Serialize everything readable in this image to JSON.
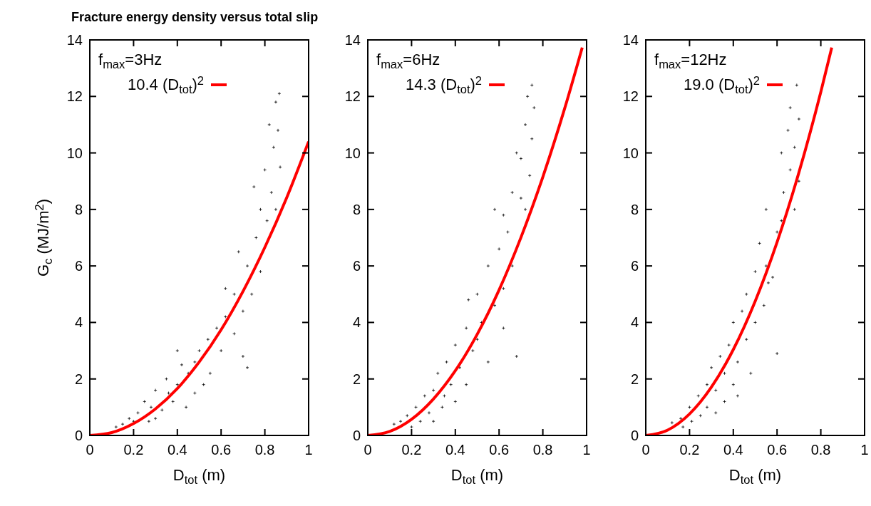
{
  "chart_data": [
    {
      "type": "scatter",
      "title": "Fracture energy density versus total slip",
      "xlabel": "D$_{tot}$ (m)",
      "ylabel": "G$_{c}$ (MJ/m$^{2}$)",
      "annotations": [
        "f$_{max}$=3Hz"
      ],
      "xlim": [
        0,
        1
      ],
      "ylim": [
        0,
        14
      ],
      "xticks": [
        0,
        0.2,
        0.4,
        0.6,
        0.8,
        1
      ],
      "yticks": [
        0,
        2,
        4,
        6,
        8,
        10,
        12,
        14
      ],
      "legend": "top left",
      "series": [
        {
          "color": "#000000",
          "marker": "cross",
          "x": [
            0.866,
            0.85,
            0.82,
            0.86,
            0.84,
            0.8,
            0.87,
            0.83,
            0.78,
            0.85,
            0.76,
            0.81,
            0.72,
            0.78,
            0.74,
            0.66,
            0.7,
            0.62,
            0.66,
            0.58,
            0.54,
            0.6,
            0.72,
            0.7,
            0.5,
            0.48,
            0.55,
            0.45,
            0.42,
            0.4,
            0.48,
            0.35,
            0.38,
            0.3,
            0.33,
            0.28,
            0.25,
            0.22,
            0.27,
            0.2,
            0.18,
            0.15,
            0.12,
            0.36,
            0.44,
            0.52,
            0.4,
            0.3,
            0.62,
            0.68,
            0.75
          ],
          "values": [
            12.1,
            11.8,
            11.0,
            10.8,
            10.2,
            9.4,
            9.5,
            8.6,
            8.0,
            8.0,
            7.0,
            7.6,
            6.0,
            5.8,
            5.0,
            5.0,
            4.4,
            4.2,
            3.6,
            3.8,
            3.4,
            3.0,
            2.4,
            2.8,
            3.0,
            2.6,
            2.2,
            2.2,
            2.5,
            1.8,
            1.5,
            2.0,
            1.2,
            1.6,
            0.9,
            1.0,
            1.2,
            0.8,
            0.5,
            0.5,
            0.6,
            0.4,
            0.3,
            1.5,
            1.0,
            1.8,
            3.0,
            0.6,
            5.2,
            6.5,
            8.8
          ]
        },
        {
          "type": "line",
          "name": "10.4 (D$_{tot}$)$^{2}$",
          "color": "#ff0000",
          "x": [
            0,
            0.1,
            0.2,
            0.3,
            0.4,
            0.5,
            0.6,
            0.7,
            0.8,
            0.9,
            1.0
          ],
          "values": [
            0,
            0.1,
            0.42,
            0.94,
            1.66,
            2.6,
            3.74,
            5.1,
            6.66,
            8.42,
            10.4
          ]
        }
      ]
    },
    {
      "type": "scatter",
      "xlabel": "D$_{tot}$ (m)",
      "annotations": [
        "f$_{max}$=6Hz"
      ],
      "xlim": [
        0,
        1
      ],
      "ylim": [
        0,
        14
      ],
      "xticks": [
        0,
        0.2,
        0.4,
        0.6,
        0.8,
        1
      ],
      "yticks": [
        0,
        2,
        4,
        6,
        8,
        10,
        12,
        14
      ],
      "legend": "top left",
      "series": [
        {
          "color": "#000000",
          "marker": "cross",
          "x": [
            0.75,
            0.73,
            0.76,
            0.72,
            0.75,
            0.68,
            0.7,
            0.74,
            0.66,
            0.72,
            0.62,
            0.7,
            0.6,
            0.66,
            0.55,
            0.62,
            0.5,
            0.58,
            0.46,
            0.52,
            0.62,
            0.45,
            0.48,
            0.55,
            0.68,
            0.4,
            0.42,
            0.36,
            0.45,
            0.38,
            0.32,
            0.4,
            0.3,
            0.34,
            0.26,
            0.28,
            0.22,
            0.24,
            0.18,
            0.2,
            0.15,
            0.12,
            0.58,
            0.64,
            0.5,
            0.35,
            0.3
          ],
          "values": [
            12.4,
            12.0,
            11.6,
            11.0,
            10.5,
            10.0,
            9.8,
            9.2,
            8.6,
            8.0,
            7.8,
            8.4,
            6.6,
            6.0,
            6.0,
            5.2,
            5.0,
            4.6,
            4.8,
            4.0,
            3.8,
            3.8,
            3.0,
            2.6,
            2.8,
            3.2,
            2.4,
            2.6,
            1.8,
            1.8,
            2.2,
            1.2,
            1.6,
            1.0,
            1.4,
            0.8,
            1.0,
            0.5,
            0.7,
            0.3,
            0.5,
            0.4,
            8.0,
            7.2,
            3.4,
            1.4,
            0.5
          ]
        },
        {
          "type": "line",
          "name": "14.3 (D$_{tot}$)$^{2}$",
          "color": "#ff0000",
          "x": [
            0,
            0.1,
            0.2,
            0.3,
            0.4,
            0.5,
            0.6,
            0.7,
            0.8,
            0.9,
            0.98
          ],
          "values": [
            0,
            0.14,
            0.57,
            1.29,
            2.29,
            3.58,
            5.15,
            7.01,
            9.15,
            11.58,
            13.73
          ]
        }
      ]
    },
    {
      "type": "scatter",
      "xlabel": "D$_{tot}$ (m)",
      "annotations": [
        "f$_{max}$=12Hz"
      ],
      "xlim": [
        0,
        1
      ],
      "ylim": [
        0,
        14
      ],
      "xticks": [
        0,
        0.2,
        0.4,
        0.6,
        0.8,
        1
      ],
      "yticks": [
        0,
        2,
        4,
        6,
        8,
        10,
        12,
        14
      ],
      "legend": "top left",
      "series": [
        {
          "color": "#000000",
          "marker": "cross",
          "x": [
            0.69,
            0.66,
            0.7,
            0.65,
            0.68,
            0.62,
            0.66,
            0.7,
            0.63,
            0.68,
            0.55,
            0.6,
            0.52,
            0.58,
            0.5,
            0.56,
            0.46,
            0.54,
            0.44,
            0.5,
            0.4,
            0.46,
            0.6,
            0.38,
            0.42,
            0.48,
            0.34,
            0.36,
            0.4,
            0.3,
            0.32,
            0.36,
            0.28,
            0.28,
            0.24,
            0.25,
            0.2,
            0.21,
            0.16,
            0.17,
            0.12,
            0.42,
            0.55,
            0.62,
            0.32
          ],
          "values": [
            12.4,
            11.6,
            11.2,
            10.8,
            10.2,
            10.0,
            9.4,
            9.0,
            8.6,
            8.0,
            8.0,
            7.2,
            6.8,
            5.6,
            5.8,
            5.4,
            5.0,
            4.6,
            4.4,
            4.0,
            4.0,
            3.4,
            2.9,
            3.2,
            2.6,
            2.2,
            2.8,
            2.2,
            1.8,
            2.4,
            1.6,
            1.2,
            1.8,
            1.0,
            1.4,
            0.7,
            1.0,
            0.5,
            0.6,
            0.3,
            0.45,
            1.4,
            6.0,
            7.6,
            0.8
          ]
        },
        {
          "type": "line",
          "name": "19.0 (D$_{tot}$)$^{2}$",
          "color": "#ff0000",
          "x": [
            0,
            0.1,
            0.2,
            0.3,
            0.4,
            0.5,
            0.6,
            0.7,
            0.8,
            0.85
          ],
          "values": [
            0,
            0.19,
            0.76,
            1.71,
            3.04,
            4.75,
            6.84,
            9.31,
            12.16,
            13.73
          ]
        }
      ]
    }
  ]
}
